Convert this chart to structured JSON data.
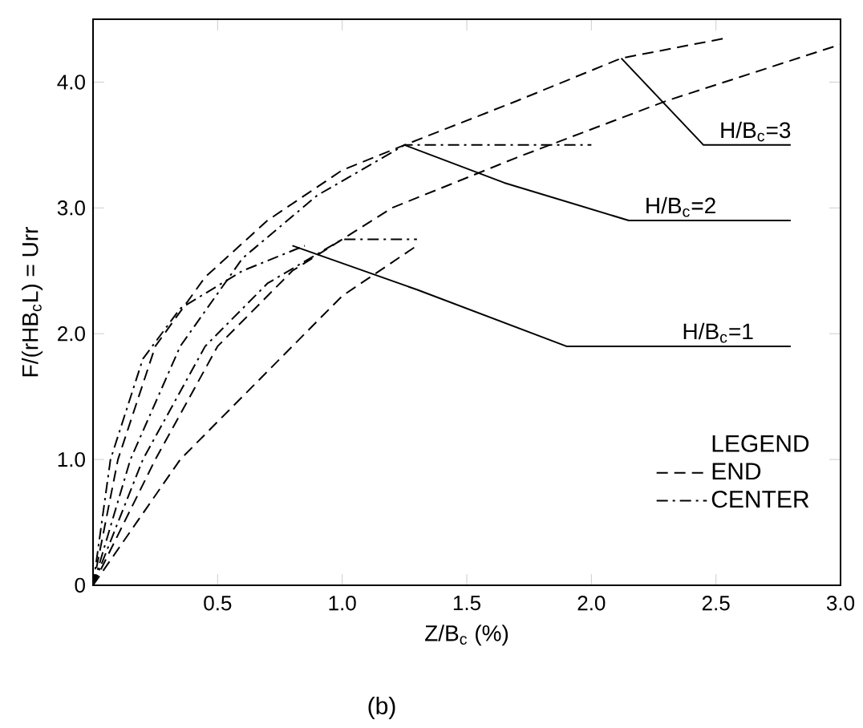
{
  "chart_data": {
    "type": "line",
    "xlabel": "Z/B$_{c}$ (%)",
    "ylabel": "F/(rHB$_{c}$L) = Urr",
    "legend_title": "LEGEND",
    "xlim": [
      0,
      3.0
    ],
    "ylim": [
      0,
      4.5
    ],
    "xticks": [
      {
        "value": 0.5,
        "label": "0.5"
      },
      {
        "value": 1.0,
        "label": "1.0"
      },
      {
        "value": 1.5,
        "label": "1.5"
      },
      {
        "value": 2.0,
        "label": "2.0"
      },
      {
        "value": 2.5,
        "label": "2.5"
      },
      {
        "value": 3.0,
        "label": "3.0"
      }
    ],
    "yticks": [
      {
        "value": 0,
        "label": "0"
      },
      {
        "value": 1.0,
        "label": "1.0"
      },
      {
        "value": 2.0,
        "label": "2.0"
      },
      {
        "value": 3.0,
        "label": "3.0"
      },
      {
        "value": 4.0,
        "label": "4.0"
      }
    ],
    "legend": "bottom right",
    "marker": "none",
    "series": [
      {
        "name": "END",
        "color": "#000000",
        "line_style": "dashed",
        "x": [
          0,
          0.1,
          0.25,
          0.45,
          0.7,
          1.0,
          1.25,
          1.7,
          2.12,
          2.54
        ],
        "values": [
          0,
          1.0,
          1.9,
          2.45,
          2.9,
          3.3,
          3.5,
          3.85,
          4.19,
          4.35
        ]
      },
      {
        "name": "CENTER",
        "color": "#000000",
        "line_style": "dashdot",
        "x": [
          0,
          0.15,
          0.35,
          0.6,
          0.9,
          1.25,
          1.7,
          2.0
        ],
        "values": [
          0,
          1.0,
          1.9,
          2.6,
          3.1,
          3.5,
          3.5,
          3.5
        ]
      },
      {
        "color": "#000000",
        "line_style": "dashed",
        "x": [
          0,
          0.25,
          0.5,
          0.8,
          1.2,
          1.7,
          2.3,
          3.0
        ],
        "values": [
          0,
          1.0,
          1.9,
          2.5,
          3.0,
          3.4,
          3.85,
          4.3
        ]
      },
      {
        "color": "#000000",
        "line_style": "dashdot",
        "x": [
          0,
          0.2,
          0.45,
          0.7,
          1.0,
          1.3
        ],
        "values": [
          0,
          1.0,
          1.9,
          2.4,
          2.75,
          2.75
        ]
      },
      {
        "color": "#000000",
        "line_style": "dashed",
        "x": [
          0,
          0.35,
          0.7,
          1.0,
          1.3
        ],
        "values": [
          0,
          1.0,
          1.7,
          2.3,
          2.7
        ]
      },
      {
        "color": "#000000",
        "line_style": "dashdot",
        "x": [
          0,
          0.07,
          0.2,
          0.35,
          0.6,
          0.85
        ],
        "values": [
          0,
          1.0,
          1.8,
          2.2,
          2.5,
          2.7
        ]
      },
      {
        "color": "#000000",
        "line_style": "solid",
        "x": [
          0.8,
          1.3,
          1.9,
          2.8
        ],
        "values": [
          2.7,
          2.35,
          1.9,
          1.9
        ]
      },
      {
        "color": "#000000",
        "line_style": "solid",
        "x": [
          1.25,
          1.65,
          2.15,
          2.8
        ],
        "values": [
          3.5,
          3.2,
          2.9,
          2.9
        ]
      },
      {
        "color": "#000000",
        "line_style": "solid",
        "x": [
          2.12,
          2.45,
          2.8
        ],
        "values": [
          4.19,
          3.5,
          3.5
        ]
      }
    ],
    "annotations": [
      {
        "text": "H/B$_{c}$=1",
        "x": 2.35,
        "y": 1.9
      },
      {
        "text": "H/B$_{c}$=2",
        "x": 2.2,
        "y": 2.9
      },
      {
        "text": "H/B$_{c}$=3",
        "x": 2.5,
        "y": 3.5
      },
      "(b)"
    ]
  }
}
